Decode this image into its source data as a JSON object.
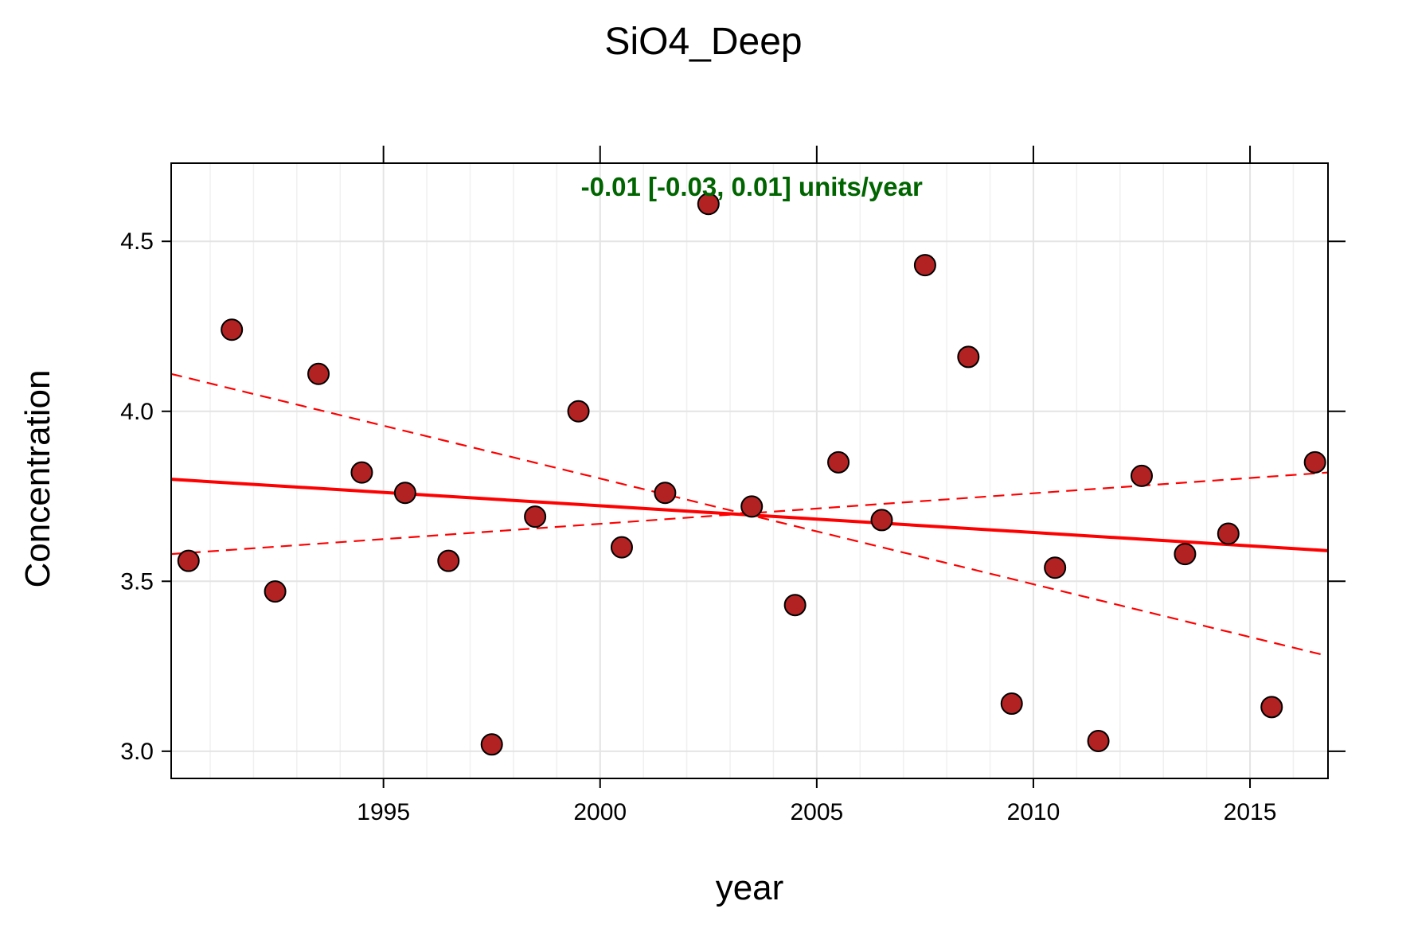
{
  "chart_data": {
    "type": "scatter",
    "title": "SiO4_Deep",
    "xlabel": "year",
    "ylabel": "Concentration",
    "xlim": [
      1990.1,
      2016.8
    ],
    "ylim": [
      2.92,
      4.73
    ],
    "x_ticks": [
      1995,
      2000,
      2005,
      2010,
      2015
    ],
    "y_ticks": [
      3.0,
      3.5,
      4.0,
      4.5
    ],
    "y_tick_labels": [
      "3.0",
      "3.5",
      "4.0",
      "4.5"
    ],
    "grid": true,
    "annotation": {
      "text": "-0.01 [-0.03, 0.01] units/year",
      "x": 2003.5,
      "y": 4.66,
      "color": "#006400"
    },
    "points": {
      "fill": "#b22222",
      "x": [
        1990.5,
        1991.5,
        1992.5,
        1993.5,
        1994.5,
        1995.5,
        1996.5,
        1997.5,
        1998.5,
        1999.5,
        2000.5,
        2001.5,
        2002.5,
        2003.5,
        2004.5,
        2005.5,
        2006.5,
        2007.5,
        2008.5,
        2009.5,
        2010.5,
        2011.5,
        2012.5,
        2013.5,
        2014.5,
        2015.5,
        2016.5
      ],
      "y": [
        3.56,
        4.24,
        3.47,
        4.11,
        3.82,
        3.76,
        3.56,
        3.02,
        3.69,
        4.0,
        3.6,
        3.76,
        4.61,
        3.72,
        3.43,
        3.85,
        3.68,
        4.43,
        4.16,
        3.14,
        3.54,
        3.03,
        3.81,
        3.58,
        3.64,
        3.13,
        3.85
      ]
    },
    "trend_lines": [
      {
        "name": "trend",
        "x": [
          1990.1,
          2016.8
        ],
        "y": [
          3.8,
          3.59
        ],
        "color": "#ff0000",
        "style": "solid"
      },
      {
        "name": "lower",
        "x": [
          1990.1,
          2016.8
        ],
        "y": [
          4.11,
          3.28
        ],
        "color": "#ff0000",
        "style": "dashed"
      },
      {
        "name": "upper",
        "x": [
          1990.1,
          2016.8
        ],
        "y": [
          3.58,
          3.82
        ],
        "color": "#ff0000",
        "style": "dashed"
      }
    ]
  }
}
